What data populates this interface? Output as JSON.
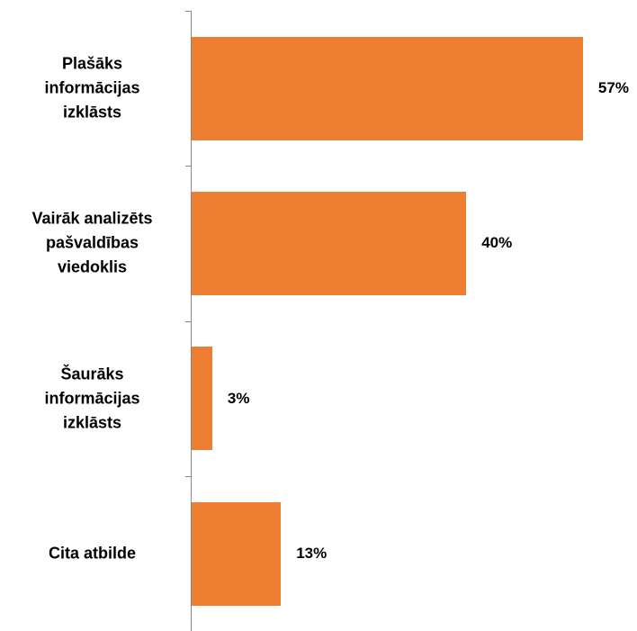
{
  "chart_data": {
    "type": "bar",
    "orientation": "horizontal",
    "categories": [
      "Plašāks\ninformācijas\nizklāsts",
      "Vairāk analizēts\npašvaldības\nviedoklis",
      "Šaurāks\ninformācijas\nizklāsts",
      "Cita atbilde"
    ],
    "values": [
      57,
      40,
      3,
      13
    ],
    "value_labels": [
      "57%",
      "40%",
      "3%",
      "13%"
    ],
    "color": "#ed7d31"
  }
}
